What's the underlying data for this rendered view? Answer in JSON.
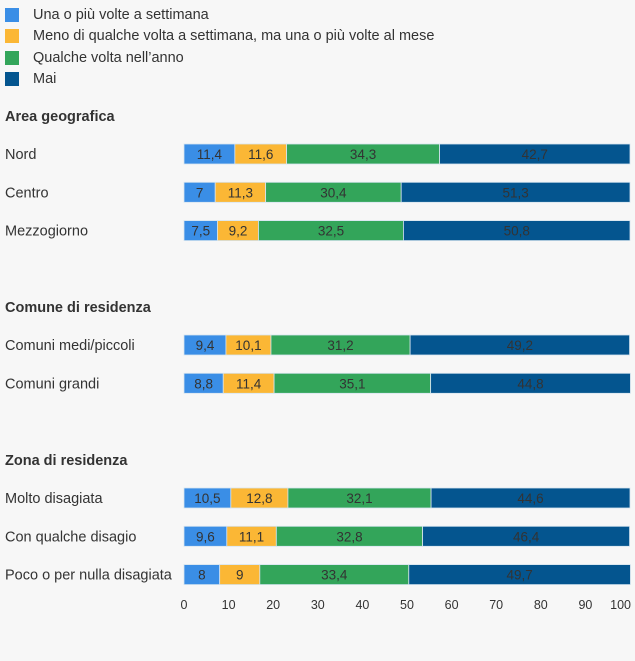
{
  "chart_data": {
    "type": "bar",
    "orientation": "horizontal",
    "stacked": true,
    "title": "",
    "xlabel": "",
    "ylabel": "",
    "xlim": [
      0,
      100
    ],
    "xticks": [
      "0",
      "10",
      "20",
      "30",
      "40",
      "50",
      "60",
      "70",
      "80",
      "90",
      "100"
    ],
    "grid": false,
    "legend_position": "top-left",
    "series": [
      {
        "name": "Una o più volte a settimana",
        "color": "#3a8ee6"
      },
      {
        "name": "Meno di qualche volta a settimana, ma una o più volte al mese",
        "color": "#fbb735"
      },
      {
        "name": "Qualche volta nell’anno",
        "color": "#33a55a"
      },
      {
        "name": "Mai",
        "color": "#04558f"
      }
    ],
    "groups": [
      {
        "title": "Area geografica",
        "rows": [
          {
            "label": "Nord",
            "values": [
              11.4,
              11.6,
              34.3,
              42.7
            ],
            "display": [
              "11,4",
              "11,6",
              "34,3",
              "42,7"
            ]
          },
          {
            "label": "Centro",
            "values": [
              7,
              11.3,
              30.4,
              51.3
            ],
            "display": [
              "7",
              "11,3",
              "30,4",
              "51,3"
            ]
          },
          {
            "label": "Mezzogiorno",
            "values": [
              7.5,
              9.2,
              32.5,
              50.8
            ],
            "display": [
              "7,5",
              "9,2",
              "32,5",
              "50,8"
            ]
          }
        ]
      },
      {
        "title": "Comune di residenza",
        "rows": [
          {
            "label": "Comuni medi/piccoli",
            "values": [
              9.4,
              10.1,
              31.2,
              49.2
            ],
            "display": [
              "9,4",
              "10,1",
              "31,2",
              "49,2"
            ]
          },
          {
            "label": "Comuni grandi",
            "values": [
              8.8,
              11.4,
              35.1,
              44.8
            ],
            "display": [
              "8,8",
              "11,4",
              "35,1",
              "44,8"
            ]
          }
        ]
      },
      {
        "title": "Zona di residenza",
        "rows": [
          {
            "label": "Molto disagiata",
            "values": [
              10.5,
              12.8,
              32.1,
              44.6
            ],
            "display": [
              "10,5",
              "12,8",
              "32,1",
              "44,6"
            ]
          },
          {
            "label": "Con qualche disagio",
            "values": [
              9.6,
              11.1,
              32.8,
              46.4
            ],
            "display": [
              "9,6",
              "11,1",
              "32,8",
              "46,4"
            ]
          },
          {
            "label": "Poco o per nulla disagiata",
            "values": [
              8,
              9,
              33.4,
              49.7
            ],
            "display": [
              "8",
              "9",
              "33,4",
              "49,7"
            ]
          }
        ]
      }
    ]
  }
}
